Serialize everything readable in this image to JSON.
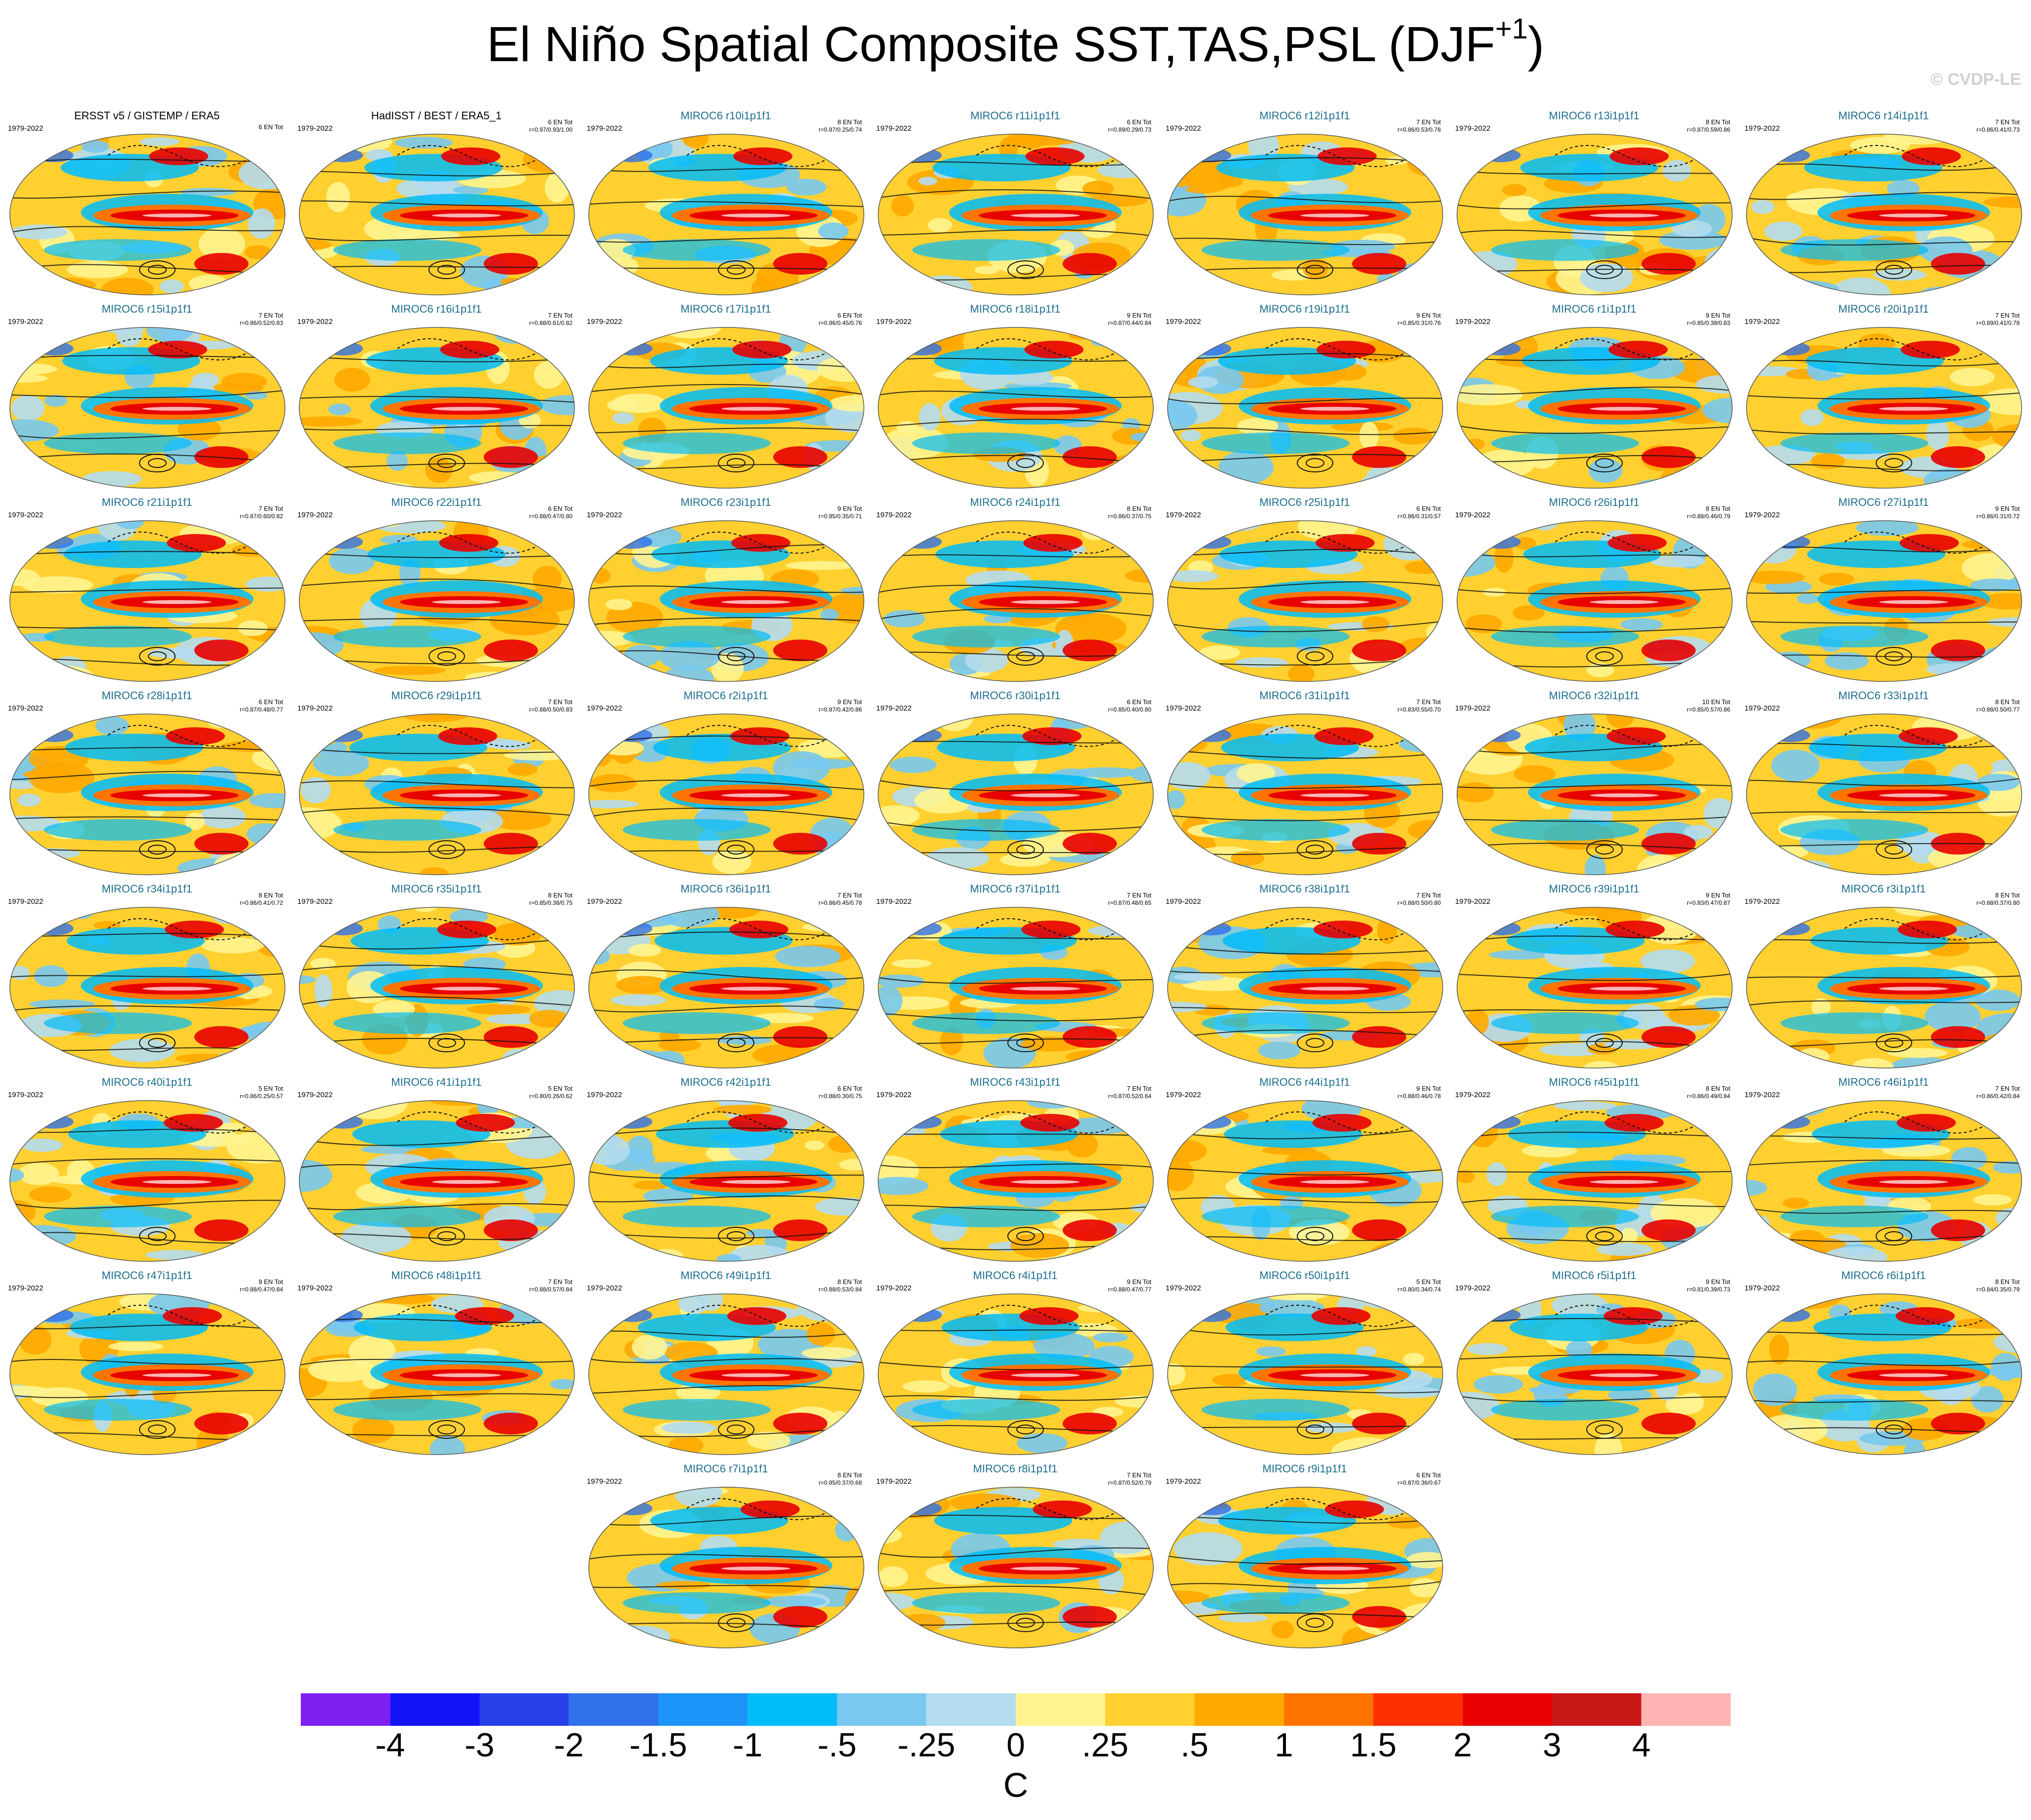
{
  "title_main": "El Niño Spatial Composite SST,TAS,PSL (DJF",
  "title_sup": "+1",
  "title_close": ")",
  "credit": "© CVDP-LE",
  "panels": [
    {
      "title": "ERSST v5 / GISTEMP / ERA5",
      "period": "1979-2022",
      "events": "6 EN Tot",
      "stats": "",
      "obs": true
    },
    {
      "title": "HadISST / BEST / ERA5_1",
      "period": "1979-2022",
      "events": "6 EN Tot",
      "stats": "r=0.97/0.93/1.00",
      "obs": true
    },
    {
      "title": "MIROC6 r10i1p1f1",
      "period": "1979-2022",
      "events": "8 EN Tot",
      "stats": "r=0.87/0.25/0.74"
    },
    {
      "title": "MIROC6 r11i1p1f1",
      "period": "1979-2022",
      "events": "6 EN Tot",
      "stats": "r=0.89/0.29/0.73"
    },
    {
      "title": "MIROC6 r12i1p1f1",
      "period": "1979-2022",
      "events": "7 EN Tot",
      "stats": "r=0.86/0.53/0.78"
    },
    {
      "title": "MIROC6 r13i1p1f1",
      "period": "1979-2022",
      "events": "8 EN Tot",
      "stats": "r=0.87/0.59/0.86"
    },
    {
      "title": "MIROC6 r14i1p1f1",
      "period": "1979-2022",
      "events": "7 EN Tot",
      "stats": "r=0.86/0.41/0.73"
    },
    {
      "title": "MIROC6 r15i1p1f1",
      "period": "1979-2022",
      "events": "7 EN Tot",
      "stats": "r=0.86/0.52/0.83"
    },
    {
      "title": "MIROC6 r16i1p1f1",
      "period": "1979-2022",
      "events": "7 EN Tot",
      "stats": "r=0.88/0.61/0.82"
    },
    {
      "title": "MIROC6 r17i1p1f1",
      "period": "1979-2022",
      "events": "6 EN Tot",
      "stats": "r=0.86/0.45/0.76"
    },
    {
      "title": "MIROC6 r18i1p1f1",
      "period": "1979-2022",
      "events": "9 EN Tot",
      "stats": "r=0.87/0.44/0.84"
    },
    {
      "title": "MIROC6 r19i1p1f1",
      "period": "1979-2022",
      "events": "9 EN Tot",
      "stats": "r=0.85/0.31/0.76"
    },
    {
      "title": "MIROC6 r1i1p1f1",
      "period": "1979-2022",
      "events": "9 EN Tot",
      "stats": "r=0.85/0.38/0.83"
    },
    {
      "title": "MIROC6 r20i1p1f1",
      "period": "1979-2022",
      "events": "7 EN Tot",
      "stats": "r=0.89/0.41/0.78"
    },
    {
      "title": "MIROC6 r21i1p1f1",
      "period": "1979-2022",
      "events": "7 EN Tot",
      "stats": "r=0.87/0.60/0.82"
    },
    {
      "title": "MIROC6 r22i1p1f1",
      "period": "1979-2022",
      "events": "6 EN Tot",
      "stats": "r=0.88/0.47/0.80"
    },
    {
      "title": "MIROC6 r23i1p1f1",
      "period": "1979-2022",
      "events": "9 EN Tot",
      "stats": "r=0.85/0.35/0.71"
    },
    {
      "title": "MIROC6 r24i1p1f1",
      "period": "1979-2022",
      "events": "8 EN Tot",
      "stats": "r=0.86/0.37/0.75"
    },
    {
      "title": "MIROC6 r25i1p1f1",
      "period": "1979-2022",
      "events": "6 EN Tot",
      "stats": "r=0.86/0.31/0.57"
    },
    {
      "title": "MIROC6 r26i1p1f1",
      "period": "1979-2022",
      "events": "8 EN Tot",
      "stats": "r=0.88/0.46/0.79"
    },
    {
      "title": "MIROC6 r27i1p1f1",
      "period": "1979-2022",
      "events": "9 EN Tot",
      "stats": "r=0.86/0.31/0.72"
    },
    {
      "title": "MIROC6 r28i1p1f1",
      "period": "1979-2022",
      "events": "6 EN Tot",
      "stats": "r=0.87/0.48/0.77"
    },
    {
      "title": "MIROC6 r29i1p1f1",
      "period": "1979-2022",
      "events": "7 EN Tot",
      "stats": "r=0.88/0.50/0.83"
    },
    {
      "title": "MIROC6 r2i1p1f1",
      "period": "1979-2022",
      "events": "9 EN Tot",
      "stats": "r=0.87/0.42/0.86"
    },
    {
      "title": "MIROC6 r30i1p1f1",
      "period": "1979-2022",
      "events": "6 EN Tot",
      "stats": "r=0.85/0.40/0.80"
    },
    {
      "title": "MIROC6 r31i1p1f1",
      "period": "1979-2022",
      "events": "7 EN Tot",
      "stats": "r=0.83/0.55/0.70"
    },
    {
      "title": "MIROC6 r32i1p1f1",
      "period": "1979-2022",
      "events": "10 EN Tot",
      "stats": "r=0.85/0.57/0.86"
    },
    {
      "title": "MIROC6 r33i1p1f1",
      "period": "1979-2022",
      "events": "8 EN Tot",
      "stats": "r=0.88/0.50/0.77"
    },
    {
      "title": "MIROC6 r34i1p1f1",
      "period": "1979-2022",
      "events": "8 EN Tot",
      "stats": "r=0.86/0.41/0.72"
    },
    {
      "title": "MIROC6 r35i1p1f1",
      "period": "1979-2022",
      "events": "8 EN Tot",
      "stats": "r=0.85/0.38/0.75"
    },
    {
      "title": "MIROC6 r36i1p1f1",
      "period": "1979-2022",
      "events": "7 EN Tot",
      "stats": "r=0.86/0.45/0.78"
    },
    {
      "title": "MIROC6 r37i1p1f1",
      "period": "1979-2022",
      "events": "7 EN Tot",
      "stats": "r=0.87/0.48/0.65"
    },
    {
      "title": "MIROC6 r38i1p1f1",
      "period": "1979-2022",
      "events": "7 EN Tot",
      "stats": "r=0.88/0.50/0.80"
    },
    {
      "title": "MIROC6 r39i1p1f1",
      "period": "1979-2022",
      "events": "9 EN Tot",
      "stats": "r=0.83/0.47/0.87"
    },
    {
      "title": "MIROC6 r3i1p1f1",
      "period": "1979-2022",
      "events": "8 EN Tot",
      "stats": "r=0.88/0.37/0.80"
    },
    {
      "title": "MIROC6 r40i1p1f1",
      "period": "1979-2022",
      "events": "5 EN Tot",
      "stats": "r=0.86/0.25/0.57"
    },
    {
      "title": "MIROC6 r41i1p1f1",
      "period": "1979-2022",
      "events": "5 EN Tot",
      "stats": "r=0.80/0.26/0.62"
    },
    {
      "title": "MIROC6 r42i1p1f1",
      "period": "1979-2022",
      "events": "6 EN Tot",
      "stats": "r=0.88/0.30/0.75"
    },
    {
      "title": "MIROC6 r43i1p1f1",
      "period": "1979-2022",
      "events": "7 EN Tot",
      "stats": "r=0.87/0.52/0.64"
    },
    {
      "title": "MIROC6 r44i1p1f1",
      "period": "1979-2022",
      "events": "9 EN Tot",
      "stats": "r=0.88/0.46/0.78"
    },
    {
      "title": "MIROC6 r45i1p1f1",
      "period": "1979-2022",
      "events": "8 EN Tot",
      "stats": "r=0.86/0.49/0.84"
    },
    {
      "title": "MIROC6 r46i1p1f1",
      "period": "1979-2022",
      "events": "7 EN Tot",
      "stats": "r=0.86/0.42/0.84"
    },
    {
      "title": "MIROC6 r47i1p1f1",
      "period": "1979-2022",
      "events": "9 EN Tot",
      "stats": "r=0.88/0.47/0.84"
    },
    {
      "title": "MIROC6 r48i1p1f1",
      "period": "1979-2022",
      "events": "7 EN Tot",
      "stats": "r=0.88/0.57/0.84"
    },
    {
      "title": "MIROC6 r49i1p1f1",
      "period": "1979-2022",
      "events": "8 EN Tot",
      "stats": "r=0.88/0.53/0.84"
    },
    {
      "title": "MIROC6 r4i1p1f1",
      "period": "1979-2022",
      "events": "9 EN Tot",
      "stats": "r=0.88/0.47/0.77"
    },
    {
      "title": "MIROC6 r50i1p1f1",
      "period": "1979-2022",
      "events": "5 EN Tot",
      "stats": "r=0.80/0.34/0.74"
    },
    {
      "title": "MIROC6 r5i1p1f1",
      "period": "1979-2022",
      "events": "9 EN Tot",
      "stats": "r=0.81/0.39/0.73"
    },
    {
      "title": "MIROC6 r6i1p1f1",
      "period": "1979-2022",
      "events": "8 EN Tot",
      "stats": "r=0.84/0.35/0.79"
    },
    {
      "title": "MIROC6 r7i1p1f1",
      "period": "1979-2022",
      "events": "8 EN Tot",
      "stats": "r=0.85/0.37/0.68"
    },
    {
      "title": "MIROC6 r8i1p1f1",
      "period": "1979-2022",
      "events": "7 EN Tot",
      "stats": "r=0.87/0.52/0.79"
    },
    {
      "title": "MIROC6 r9i1p1f1",
      "period": "1979-2022",
      "events": "6 EN Tot",
      "stats": "r=0.87/0.36/0.67"
    }
  ],
  "chart_data": {
    "type": "heatmap",
    "title": "El Niño Spatial Composite SST,TAS,PSL (DJF+1)",
    "colorbar": {
      "units": "C",
      "tick_labels": [
        "-4",
        "-3",
        "-2",
        "-1.5",
        "-1",
        "-.5",
        "-.25",
        "0",
        ".25",
        ".5",
        "1",
        "1.5",
        "2",
        "3",
        "4"
      ],
      "levels": [
        -4,
        -3,
        -2,
        -1.5,
        -1,
        -0.5,
        -0.25,
        0,
        0.25,
        0.5,
        1,
        1.5,
        2,
        3,
        4
      ],
      "colors": [
        "#8020f0",
        "#1414f8",
        "#2840e8",
        "#3070e8",
        "#1c94f8",
        "#00bcf8",
        "#78c8f0",
        "#b4dcf0",
        "#fff490",
        "#ffd030",
        "#ffa800",
        "#ff7400",
        "#ff3000",
        "#e80000",
        "#c81818",
        "#ffb4b4"
      ]
    }
  }
}
